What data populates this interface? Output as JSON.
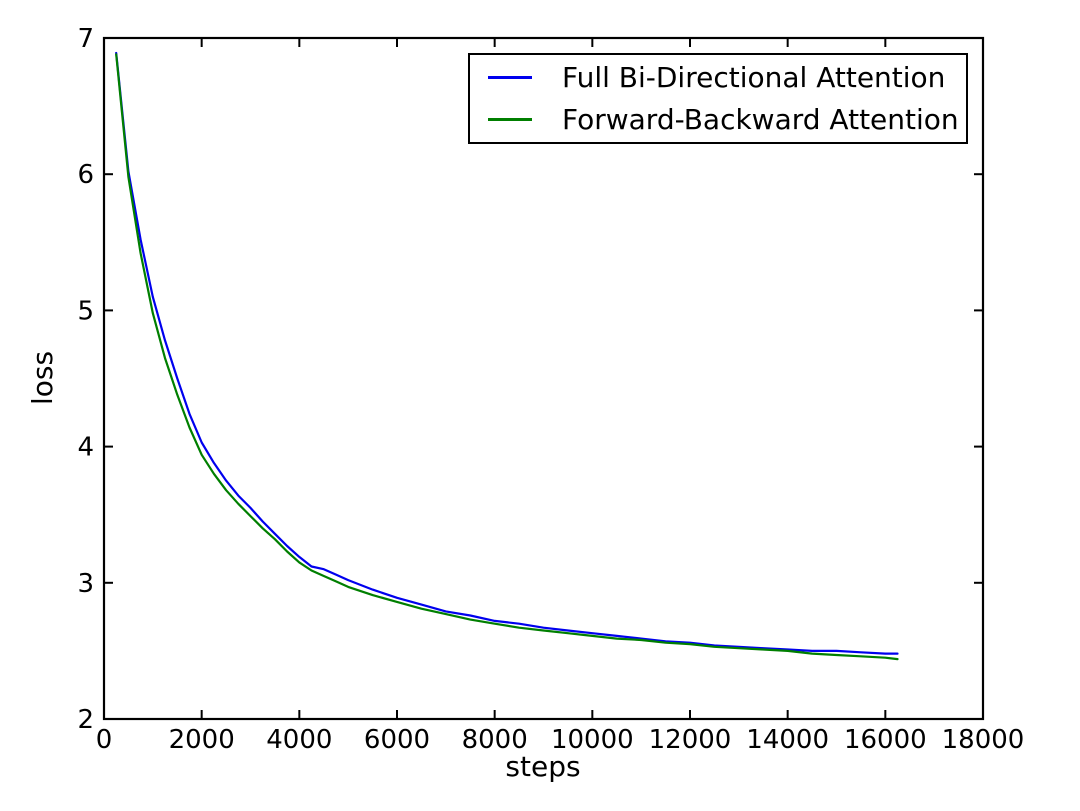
{
  "figure": {
    "background": "#ffffff",
    "title": ""
  },
  "chart_data": {
    "type": "line",
    "title": "",
    "xlabel": "steps",
    "ylabel": "loss",
    "xlim": [
      0,
      18000
    ],
    "ylim": [
      2,
      7
    ],
    "xticks": [
      0,
      2000,
      4000,
      6000,
      8000,
      10000,
      12000,
      14000,
      16000,
      18000
    ],
    "yticks": [
      2,
      3,
      4,
      5,
      6,
      7
    ],
    "grid": false,
    "legend_position": "upper right inside, boxed",
    "x": [
      250,
      500,
      750,
      1000,
      1250,
      1500,
      1750,
      2000,
      2250,
      2500,
      2750,
      3000,
      3250,
      3500,
      3750,
      4000,
      4250,
      4500,
      4750,
      5000,
      5500,
      6000,
      6500,
      7000,
      7500,
      8000,
      8500,
      9000,
      9500,
      10000,
      10500,
      11000,
      11500,
      12000,
      12500,
      13000,
      13500,
      14000,
      14500,
      15000,
      15500,
      16000,
      16250
    ],
    "series": [
      {
        "id": "full-bidirectional-attention",
        "name": "Full Bi-Directional Attention",
        "color": "#0000ee",
        "values": [
          6.89,
          6.02,
          5.52,
          5.1,
          4.78,
          4.5,
          4.24,
          4.03,
          3.88,
          3.75,
          3.64,
          3.55,
          3.45,
          3.36,
          3.27,
          3.19,
          3.12,
          3.1,
          3.06,
          3.02,
          2.95,
          2.89,
          2.84,
          2.79,
          2.76,
          2.72,
          2.7,
          2.67,
          2.65,
          2.63,
          2.61,
          2.59,
          2.57,
          2.56,
          2.54,
          2.53,
          2.52,
          2.51,
          2.5,
          2.5,
          2.49,
          2.48,
          2.48
        ]
      },
      {
        "id": "forward-backward-attention",
        "name": "Forward-Backward Attention",
        "color": "#007f00",
        "values": [
          6.88,
          5.98,
          5.42,
          4.98,
          4.65,
          4.38,
          4.14,
          3.94,
          3.8,
          3.68,
          3.58,
          3.49,
          3.4,
          3.32,
          3.23,
          3.15,
          3.09,
          3.05,
          3.01,
          2.97,
          2.91,
          2.86,
          2.81,
          2.77,
          2.73,
          2.7,
          2.67,
          2.65,
          2.63,
          2.61,
          2.59,
          2.58,
          2.56,
          2.55,
          2.53,
          2.52,
          2.51,
          2.5,
          2.48,
          2.47,
          2.46,
          2.45,
          2.44
        ]
      }
    ]
  }
}
